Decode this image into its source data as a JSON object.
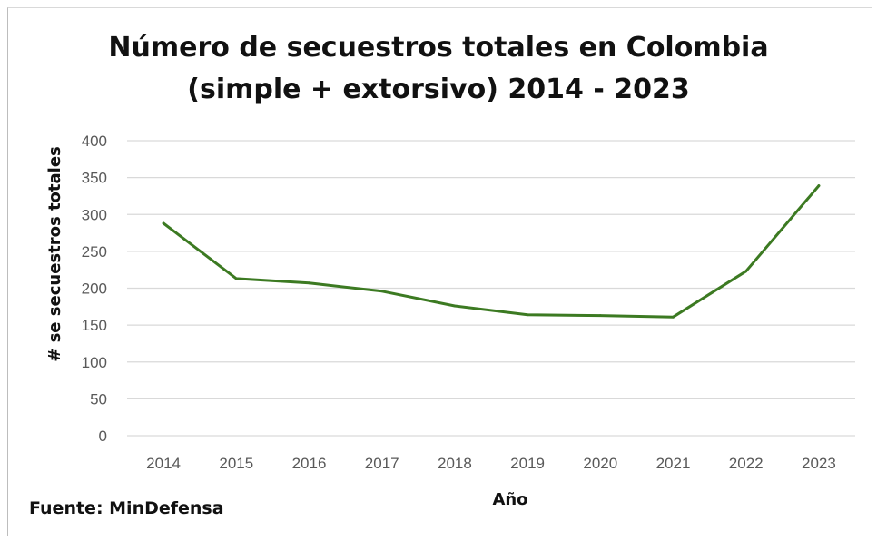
{
  "chart_data": {
    "type": "line",
    "title": [
      "Número de secuestros totales en Colombia",
      "(simple + extorsivo) 2014 - 2023"
    ],
    "xlabel": "Año",
    "ylabel": "# se secuestros totales",
    "categories": [
      "2014",
      "2015",
      "2016",
      "2017",
      "2018",
      "2019",
      "2020",
      "2021",
      "2022",
      "2023"
    ],
    "series": [
      {
        "values": [
          288,
          213,
          207,
          196,
          176,
          164,
          163,
          161,
          223,
          339
        ],
        "color": "#3c7a22"
      }
    ],
    "ylim": [
      0,
      400
    ],
    "yticks": [
      0,
      50,
      100,
      150,
      200,
      250,
      300,
      350,
      400
    ],
    "grid": true,
    "legend": "none"
  },
  "source": "Fuente: MinDefensa",
  "colors": {
    "line": "#3c7a22",
    "grid": "#d9d9d9",
    "tick_text": "#595959",
    "text": "#111111"
  }
}
